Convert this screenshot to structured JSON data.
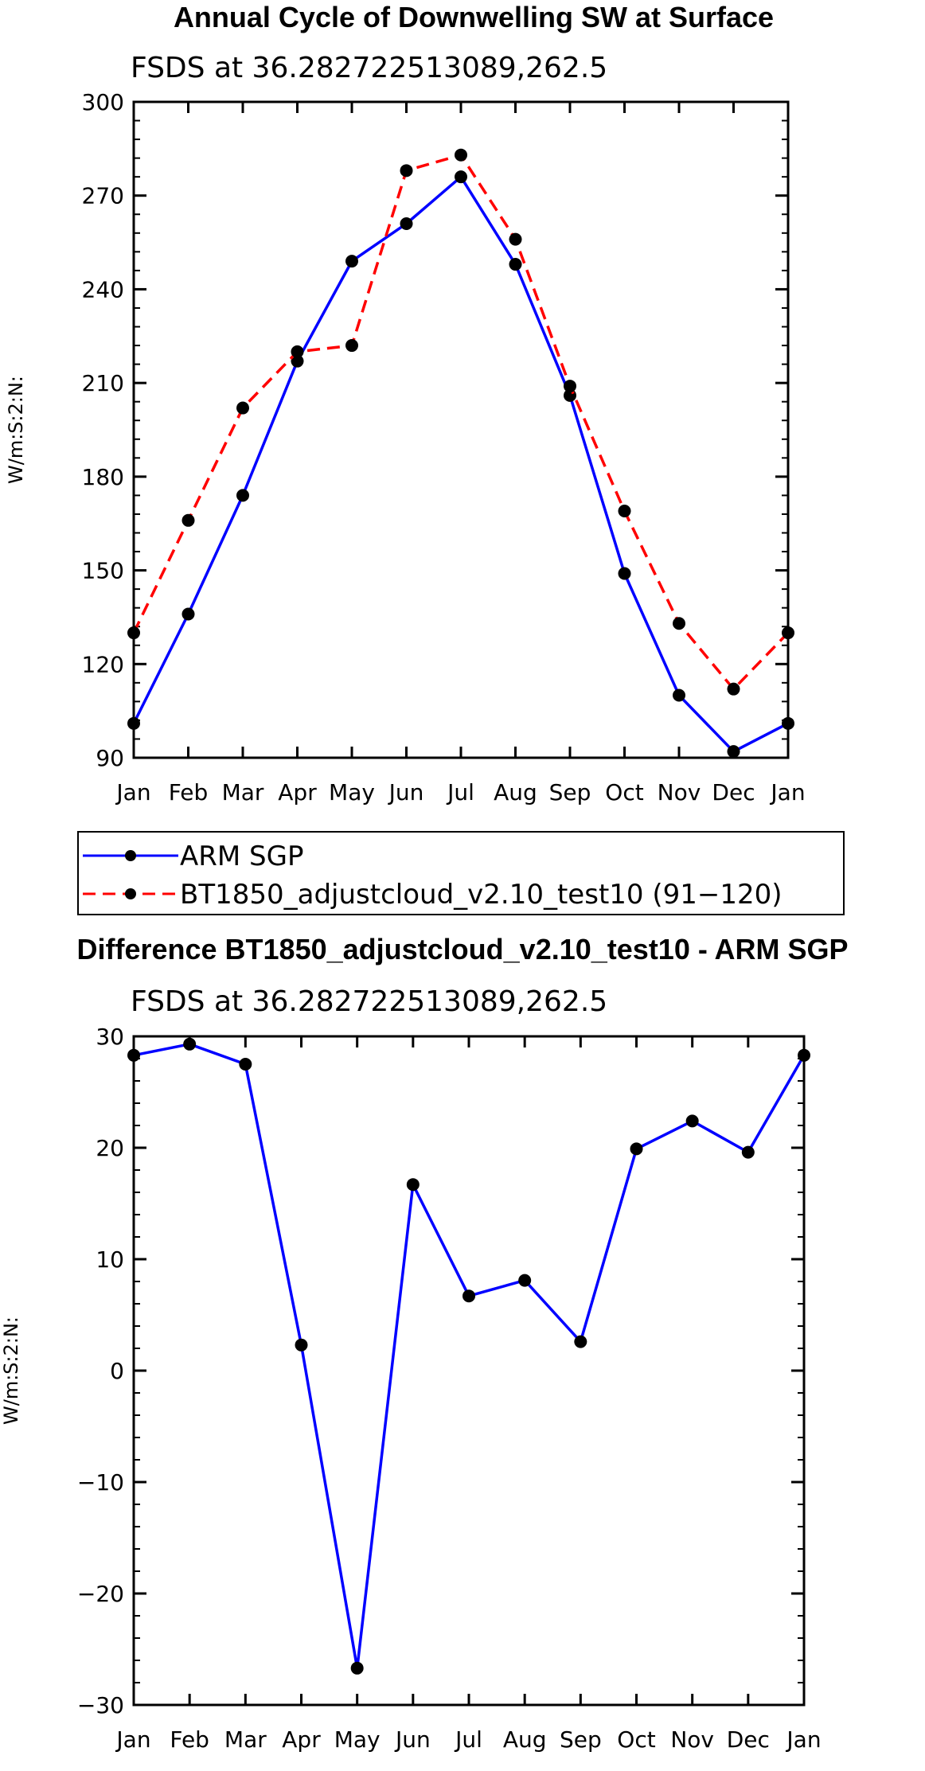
{
  "chart_data": [
    {
      "type": "line",
      "title": "Annual Cycle of Downwelling SW at Surface",
      "subtitle": "FSDS at 36.282722513089,262.5",
      "xlabel": "",
      "ylabel": "W/m:S:2:N:",
      "categories": [
        "Jan",
        "Feb",
        "Mar",
        "Apr",
        "May",
        "Jun",
        "Jul",
        "Aug",
        "Sep",
        "Oct",
        "Nov",
        "Dec",
        "Jan"
      ],
      "ylim": [
        90,
        300
      ],
      "yticks": [
        90,
        120,
        150,
        180,
        210,
        240,
        270,
        300
      ],
      "grid": false,
      "legend": "below-plot",
      "series": [
        {
          "name": "ARM SGP",
          "color": "#0000ff",
          "dash": "solid",
          "values": [
            101,
            136,
            174,
            217,
            249,
            261,
            276,
            248,
            206,
            149,
            110,
            92,
            101
          ]
        },
        {
          "name": "BT1850_adjustcloud_v2.10_test10 (91−120)",
          "color": "#ff0000",
          "dash": "dashed",
          "values": [
            130,
            166,
            202,
            220,
            222,
            278,
            283,
            256,
            209,
            169,
            133,
            112,
            130
          ]
        }
      ]
    },
    {
      "type": "line",
      "title": "Difference BT1850_adjustcloud_v2.10_test10 - ARM SGP",
      "subtitle": "FSDS at 36.282722513089,262.5",
      "xlabel": "",
      "ylabel": "W/m:S:2:N:",
      "categories": [
        "Jan",
        "Feb",
        "Mar",
        "Apr",
        "May",
        "Jun",
        "Jul",
        "Aug",
        "Sep",
        "Oct",
        "Nov",
        "Dec",
        "Jan"
      ],
      "ylim": [
        -30,
        30
      ],
      "yticks": [
        -30,
        -20,
        -10,
        0,
        10,
        20,
        30
      ],
      "ytick_labels": [
        "−30",
        "−20",
        "−10",
        "0",
        "10",
        "20",
        "30"
      ],
      "grid": false,
      "series": [
        {
          "name": "Difference",
          "color": "#0000ff",
          "dash": "solid",
          "values": [
            28.3,
            29.3,
            27.5,
            2.3,
            -26.7,
            16.7,
            6.7,
            8.1,
            2.6,
            19.9,
            22.4,
            19.6,
            28.3
          ]
        }
      ]
    }
  ]
}
